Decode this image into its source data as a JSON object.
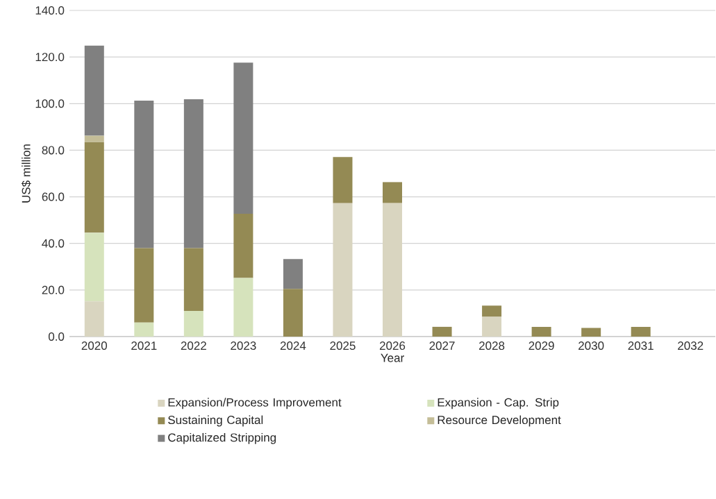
{
  "chart_data": {
    "type": "bar",
    "stacked": true,
    "xlabel": "Year",
    "ylabel": "US$ million",
    "categories": [
      "2020",
      "2021",
      "2022",
      "2023",
      "2024",
      "2025",
      "2026",
      "2027",
      "2028",
      "2029",
      "2030",
      "2031",
      "2032"
    ],
    "series": [
      {
        "name": "Expansion/Process Improvement",
        "color": "#d9d5c0",
        "values": [
          15.1,
          0,
          0,
          0,
          0,
          57.3,
          57.3,
          0,
          8.5,
          0,
          0,
          0,
          0
        ]
      },
      {
        "name": "Expansion - Cap. Strip",
        "color": "#d6e3bc",
        "values": [
          29.5,
          6.0,
          11.0,
          25.2,
          0,
          0,
          0,
          0,
          0,
          0,
          0,
          0,
          0
        ]
      },
      {
        "name": "Sustaining Capital",
        "color": "#948a54",
        "values": [
          38.9,
          32.0,
          27.0,
          27.5,
          20.5,
          19.8,
          9.0,
          4.2,
          4.8,
          4.2,
          3.7,
          4.2,
          0
        ]
      },
      {
        "name": "Resource Development",
        "color": "#c4bd97",
        "values": [
          2.7,
          0,
          0,
          0,
          0,
          0,
          0,
          0,
          0,
          0,
          0,
          0,
          0
        ]
      },
      {
        "name": "Capitalized Stripping",
        "color": "#808080",
        "values": [
          38.7,
          63.3,
          63.9,
          64.9,
          12.8,
          0,
          0,
          0,
          0,
          0,
          0,
          0,
          0
        ]
      }
    ],
    "ylim": [
      0,
      140
    ],
    "yticks": [
      {
        "value": 0,
        "label": "0.0"
      },
      {
        "value": 20,
        "label": "20.0"
      },
      {
        "value": 40,
        "label": "40.0"
      },
      {
        "value": 60,
        "label": "60.0"
      },
      {
        "value": 80,
        "label": "80.0"
      },
      {
        "value": 100,
        "label": "100.0"
      },
      {
        "value": 120,
        "label": "120.0"
      },
      {
        "value": 140,
        "label": "140.0"
      }
    ],
    "grid": "y",
    "legend": "bottom"
  }
}
